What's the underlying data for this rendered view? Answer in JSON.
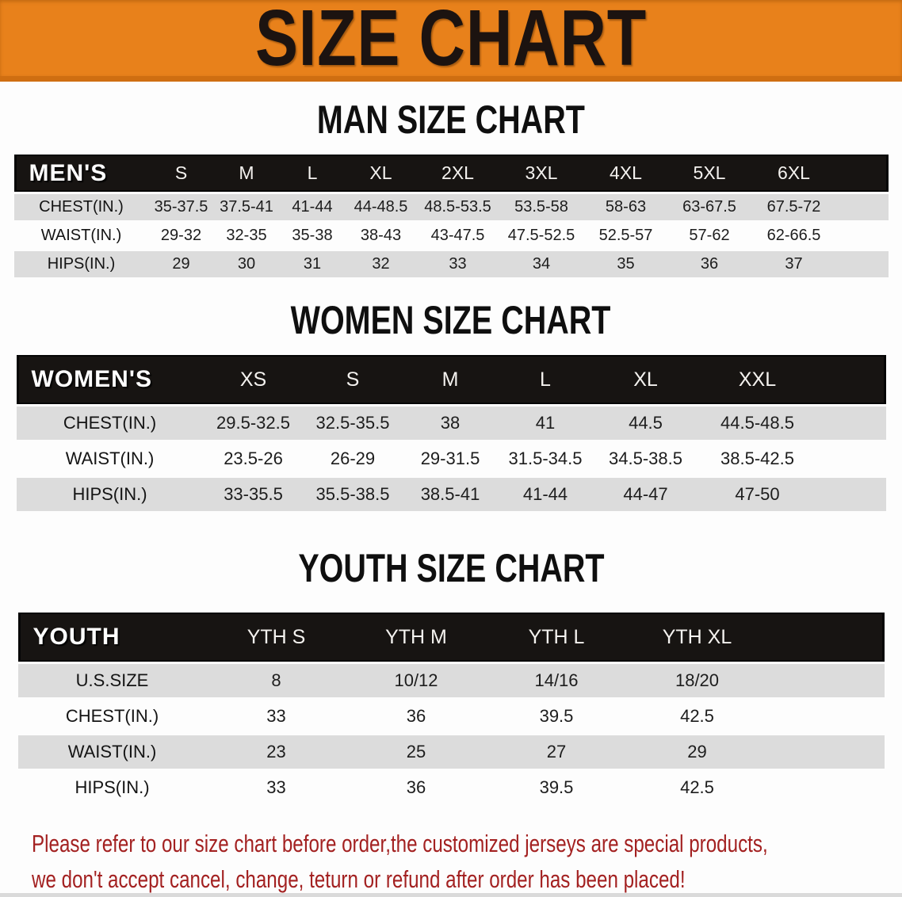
{
  "banner": {
    "title": "SIZE CHART"
  },
  "sections": [
    {
      "heading": "MAN SIZE CHART",
      "table": {
        "corner_label": "MEN'S",
        "columns": [
          "S",
          "M",
          "L",
          "XL",
          "2XL",
          "3XL",
          "4XL",
          "5XL",
          "6XL"
        ],
        "rows": [
          {
            "label": "CHEST(IN.)",
            "values": [
              "35-37.5",
              "37.5-41",
              "41-44",
              "44-48.5",
              "48.5-53.5",
              "53.5-58",
              "58-63",
              "63-67.5",
              "67.5-72"
            ]
          },
          {
            "label": "WAIST(IN.)",
            "values": [
              "29-32",
              "32-35",
              "35-38",
              "38-43",
              "43-47.5",
              "47.5-52.5",
              "52.5-57",
              "57-62",
              "62-66.5"
            ]
          },
          {
            "label": "HIPS(IN.)",
            "values": [
              "29",
              "30",
              "31",
              "32",
              "33",
              "34",
              "35",
              "36",
              "37"
            ]
          }
        ]
      }
    },
    {
      "heading": "WOMEN SIZE CHART",
      "table": {
        "corner_label": "WOMEN'S",
        "columns": [
          "XS",
          "S",
          "M",
          "L",
          "XL",
          "XXL"
        ],
        "rows": [
          {
            "label": "CHEST(IN.)",
            "values": [
              "29.5-32.5",
              "32.5-35.5",
              "38",
              "41",
              "44.5",
              "44.5-48.5"
            ]
          },
          {
            "label": "WAIST(IN.)",
            "values": [
              "23.5-26",
              "26-29",
              "29-31.5",
              "31.5-34.5",
              "34.5-38.5",
              "38.5-42.5"
            ]
          },
          {
            "label": "HIPS(IN.)",
            "values": [
              "33-35.5",
              "35.5-38.5",
              "38.5-41",
              "41-44",
              "44-47",
              "47-50"
            ]
          }
        ]
      }
    },
    {
      "heading": "YOUTH SIZE CHART",
      "table": {
        "corner_label": "YOUTH",
        "columns": [
          "YTH S",
          "YTH M",
          "YTH L",
          "YTH XL"
        ],
        "rows": [
          {
            "label": "U.S.SIZE",
            "values": [
              "8",
              "10/12",
              "14/16",
              "18/20"
            ]
          },
          {
            "label": "CHEST(IN.)",
            "values": [
              "33",
              "36",
              "39.5",
              "42.5"
            ]
          },
          {
            "label": "WAIST(IN.)",
            "values": [
              "23",
              "25",
              "27",
              "29"
            ]
          },
          {
            "label": "HIPS(IN.)",
            "values": [
              "33",
              "36",
              "39.5",
              "42.5"
            ]
          }
        ]
      }
    }
  ],
  "footer_note": {
    "line1": "Please refer to our size chart before order,the customized jerseys are special products,",
    "line2": "we don't accept cancel, change, teturn or refund after order has been placed!"
  },
  "colors": {
    "banner_background": "#E8811B",
    "banner_border": "#CF6E11",
    "header_bar": "#171412",
    "alt_row_gray": "#DCDCDC",
    "note_red": "#A32121"
  }
}
